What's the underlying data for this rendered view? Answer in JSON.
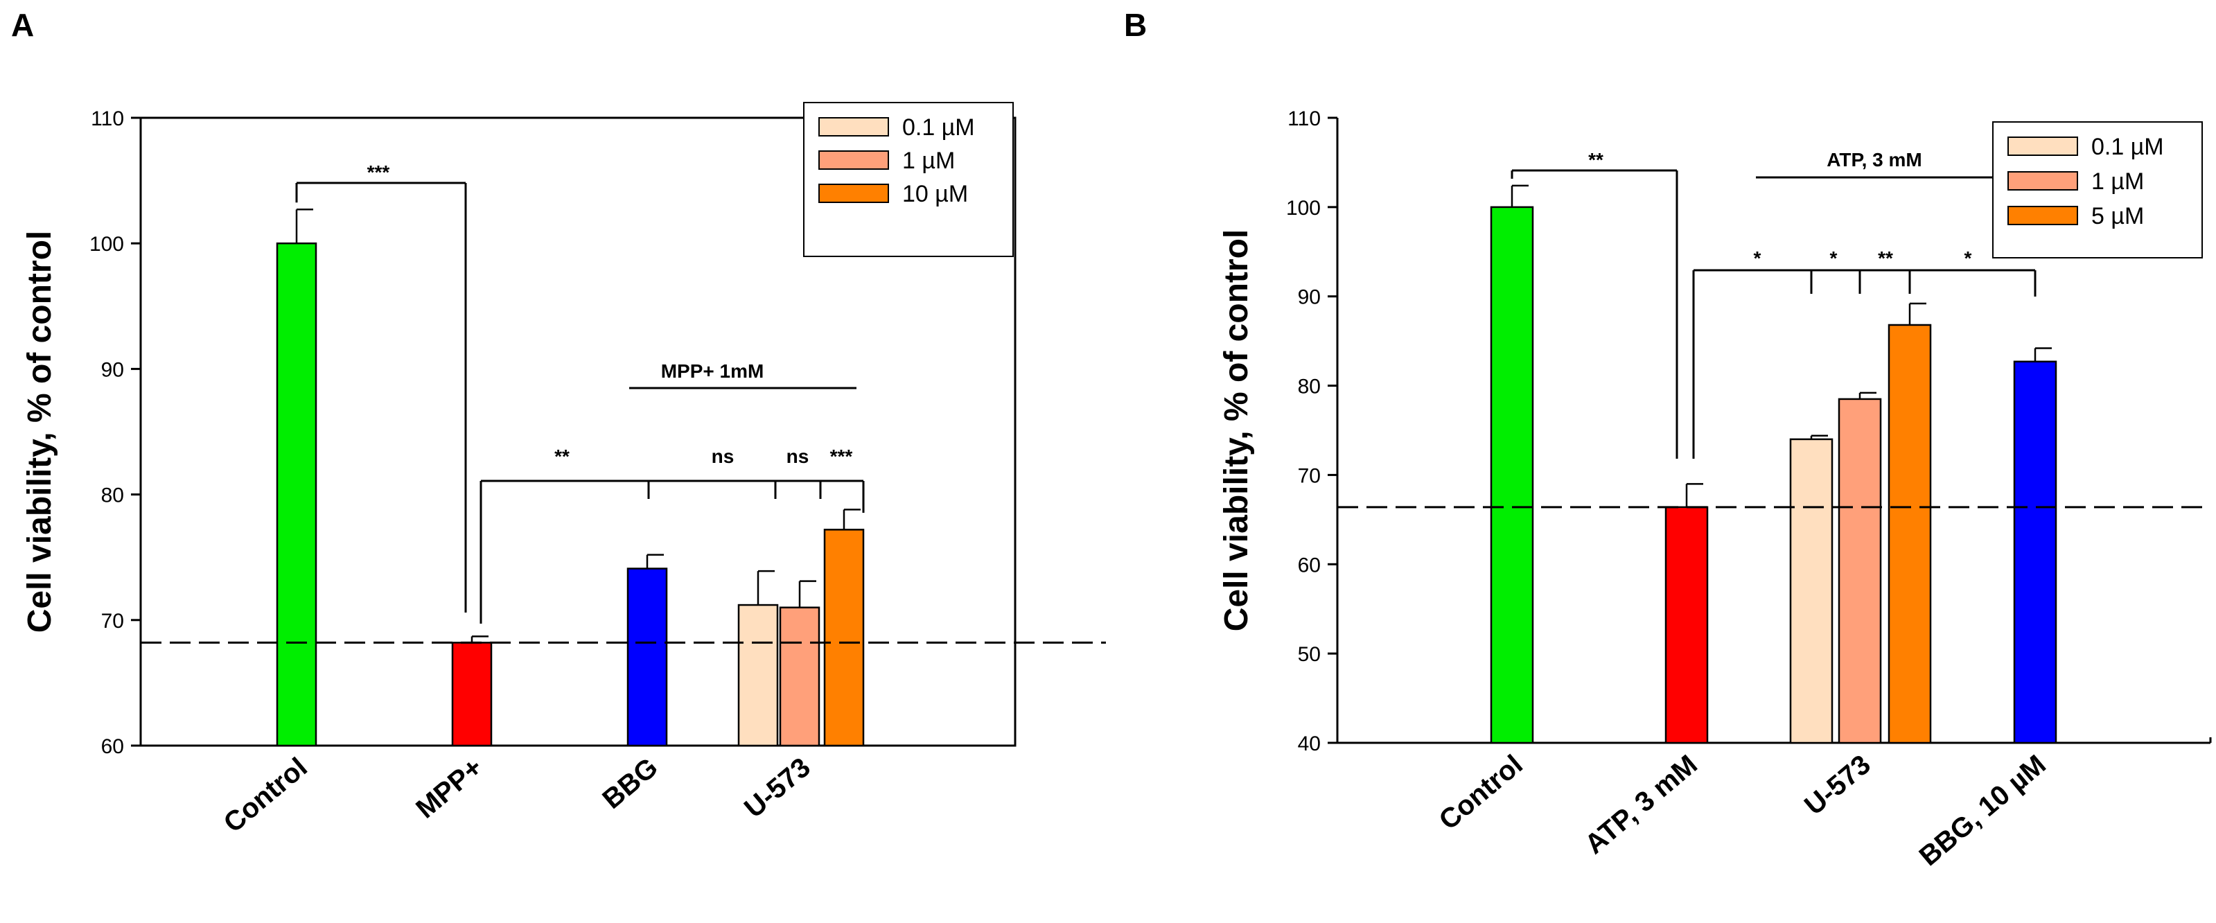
{
  "chart_data": [
    {
      "panel": "A",
      "type": "bar",
      "ylabel": "Cell viability, % of control",
      "ylim": [
        60,
        110
      ],
      "yticks": [
        "60",
        "70",
        "80",
        "90",
        "100",
        "110"
      ],
      "categories": [
        "Control",
        "MPP+",
        "BBG",
        "U-573"
      ],
      "bars": [
        {
          "category": "Control",
          "value": 100,
          "error": 2.7,
          "color": "#00ee00"
        },
        {
          "category": "MPP+",
          "value": 68.2,
          "error": 0.5,
          "color": "#ff0000"
        },
        {
          "category": "BBG",
          "value": 74.1,
          "error": 1.1,
          "color": "#0000ff"
        },
        {
          "category": "U-573",
          "series": "0.1 µM",
          "value": 71.2,
          "error": 2.7,
          "color": "#ffdfbf"
        },
        {
          "category": "U-573",
          "series": "1 µM",
          "value": 71.0,
          "error": 2.1,
          "color": "#ffa07a"
        },
        {
          "category": "U-573",
          "series": "10 µM",
          "value": 77.2,
          "error": 1.6,
          "color": "#ff8000"
        }
      ],
      "legend": [
        {
          "label": "0.1 µM",
          "color": "#ffdfbf"
        },
        {
          "label": "1 µM",
          "color": "#ffa07a"
        },
        {
          "label": "10 µM",
          "color": "#ff8000"
        }
      ],
      "reference_line": 68.2,
      "group_label": "MPP+ 1mM",
      "significance": {
        "control_vs_mpp": "***",
        "marks": [
          "**",
          "ns",
          "ns",
          "***"
        ]
      }
    },
    {
      "panel": "B",
      "type": "bar",
      "ylabel": "Cell viability, % of control",
      "ylim": [
        40,
        110
      ],
      "yticks": [
        "40",
        "50",
        "60",
        "70",
        "80",
        "90",
        "100",
        "110"
      ],
      "categories": [
        "Control",
        "ATP, 3 mM",
        "U-573",
        "BBG, 10 µM"
      ],
      "bars": [
        {
          "category": "Control",
          "value": 100,
          "error": 2.4,
          "color": "#00ee00"
        },
        {
          "category": "ATP, 3 mM",
          "value": 66.4,
          "error": 2.6,
          "color": "#ff0000"
        },
        {
          "category": "U-573",
          "series": "0.1 µM",
          "value": 74.0,
          "error": 0.4,
          "color": "#ffdfbf"
        },
        {
          "category": "U-573",
          "series": "1 µM",
          "value": 78.5,
          "error": 0.7,
          "color": "#ffa07a"
        },
        {
          "category": "U-573",
          "series": "5 µM",
          "value": 86.8,
          "error": 2.4,
          "color": "#ff8000"
        },
        {
          "category": "BBG, 10 µM",
          "value": 82.7,
          "error": 1.5,
          "color": "#0000ff"
        }
      ],
      "legend": [
        {
          "label": "0.1 µM",
          "color": "#ffdfbf"
        },
        {
          "label": "1 µM",
          "color": "#ffa07a"
        },
        {
          "label": "5 µM",
          "color": "#ff8000"
        }
      ],
      "reference_line": 66.4,
      "group_label": "ATP, 3 mM",
      "significance": {
        "control_vs_atp": "**",
        "marks": [
          "*",
          "*",
          "**",
          "*"
        ]
      }
    }
  ]
}
